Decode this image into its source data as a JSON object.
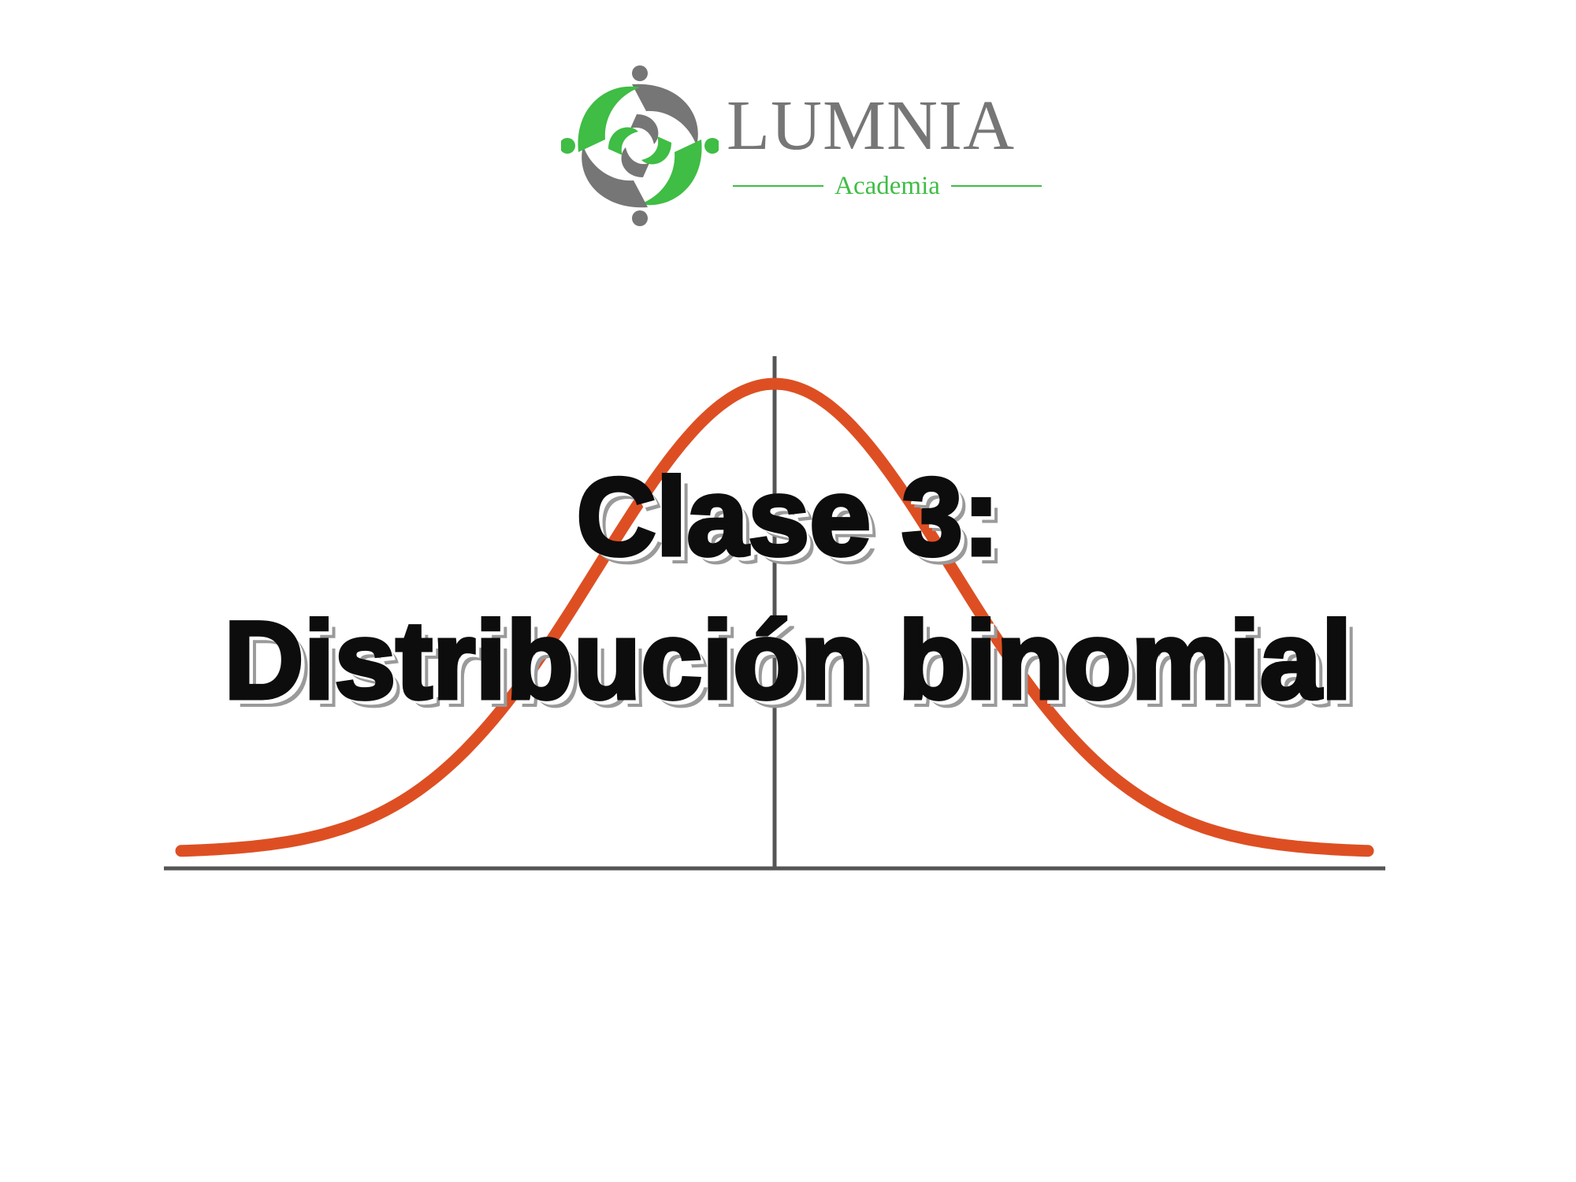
{
  "logo": {
    "name": "LUMNIA",
    "tagline": "Academia",
    "colors": {
      "green": "#3fbd45",
      "gray": "#767676"
    }
  },
  "title": {
    "line1": "Clase 3:",
    "line2": "Distribución binomial"
  },
  "illustration": {
    "curve": "bell-curve",
    "curve_color": "#dd4f23",
    "axis_color": "#555555"
  }
}
